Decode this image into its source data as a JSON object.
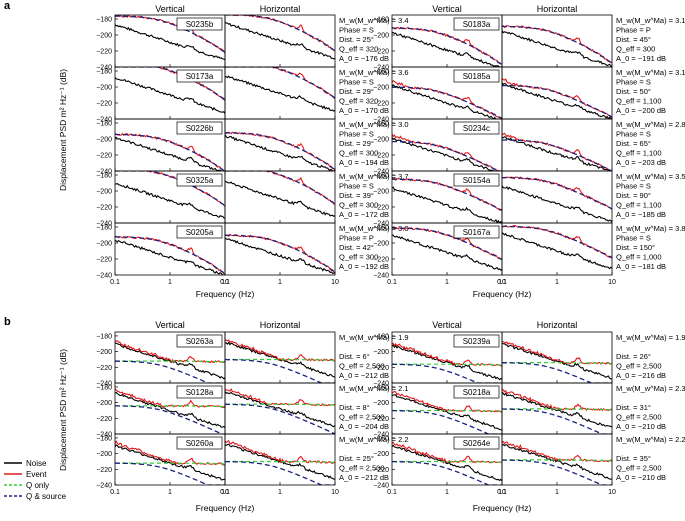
{
  "chart_data": {
    "type": "line",
    "panels": [
      {
        "label": "a",
        "x_label": "Frequency (Hz)",
        "y_label": "Displacement PSD m² Hz⁻¹ (dB)",
        "col_titles": [
          "Vertical",
          "Horizontal",
          "Vertical",
          "Horizontal"
        ],
        "x_ticks": [
          0.1,
          1,
          10
        ],
        "y_ticks": [
          -180,
          -200,
          -220,
          -240
        ],
        "ylim": [
          -240,
          -175
        ],
        "xlim": [
          0.1,
          10
        ],
        "events": [
          {
            "id": "S0235b",
            "info": [
              "M_w(M_w^Ma) = 3.4",
              "Phase = S",
              "Dist. = 25°",
              "Q_eff = 320",
              "A_0 = −176 dB"
            ],
            "col": 0,
            "row": 0,
            "A0": -176,
            "Q": 320,
            "noise0": -187,
            "noiseSlope": 20,
            "eventGap": 5
          },
          {
            "id": "S0173a",
            "info": [
              "M_w(M_w^Ma) = 3.6",
              "Phase = S",
              "Dist. = 29°",
              "Q_eff = 320",
              "A_0 = −170 dB"
            ],
            "col": 0,
            "row": 1,
            "A0": -170,
            "Q": 320,
            "noise0": -188,
            "noiseSlope": 20,
            "eventGap": 6
          },
          {
            "id": "S0226b",
            "info": [
              "M_w(M_w^Ma) = 3.0",
              "Phase = S",
              "Dist. = 29°",
              "Q_eff = 300",
              "A_0 = −194 dB"
            ],
            "col": 0,
            "row": 2,
            "A0": -194,
            "Q": 300,
            "noise0": -198,
            "noiseSlope": 20,
            "eventGap": 4
          },
          {
            "id": "S0325a",
            "info": [
              "M_w(M_w^Ma) = 3.7",
              "Phase = S",
              "Dist. = 39°",
              "Q_eff = 300",
              "A_0 = −172 dB"
            ],
            "col": 0,
            "row": 3,
            "A0": -172,
            "Q": 300,
            "noise0": -190,
            "noiseSlope": 20,
            "eventGap": 6
          },
          {
            "id": "S0205a",
            "info": [
              "M_w(M_w^Ma) = 3.0",
              "Phase = P",
              "Dist. = 42°",
              "Q_eff = 300",
              "A_0 = −192 dB"
            ],
            "col": 0,
            "row": 4,
            "A0": -192,
            "Q": 300,
            "noise0": -196,
            "noiseSlope": 20,
            "eventGap": 4
          },
          {
            "id": "S0183a",
            "info": [
              "M_w(M_w^Ma) = 3.1",
              "Phase = P",
              "Dist. = 45°",
              "Q_eff = 300",
              "A_0 = −191 dB"
            ],
            "col": 2,
            "row": 0,
            "A0": -191,
            "Q": 300,
            "noise0": -197,
            "noiseSlope": 20,
            "eventGap": 4
          },
          {
            "id": "S0185a",
            "info": [
              "M_w(M_w^Ma) = 3.1",
              "Phase = S",
              "Dist. = 50°",
              "Q_eff = 1,100",
              "A_0 = −200 dB"
            ],
            "col": 2,
            "row": 1,
            "A0": -200,
            "Q": 1100,
            "noise0": -198,
            "noiseSlope": 20,
            "eventGap": 5
          },
          {
            "id": "S0234c",
            "info": [
              "M_w(M_w^Ma) = 2.8",
              "Phase = S",
              "Dist. = 65°",
              "Q_eff = 1,100",
              "A_0 = −203 dB"
            ],
            "col": 2,
            "row": 2,
            "A0": -203,
            "Q": 1100,
            "noise0": -199,
            "noiseSlope": 20,
            "eventGap": 4
          },
          {
            "id": "S0154a",
            "info": [
              "M_w(M_w^Ma) = 3.5",
              "Phase = S",
              "Dist. = 90°",
              "Q_eff = 1,100",
              "A_0 = −185 dB"
            ],
            "col": 2,
            "row": 3,
            "A0": -185,
            "Q": 1100,
            "noise0": -196,
            "noiseSlope": 20,
            "eventGap": 5
          },
          {
            "id": "S0167a",
            "info": [
              "M_w(M_w^Ma) = 3.8",
              "Phase = S",
              "Dist. = 150°",
              "Q_eff = 1,000",
              "A_0 = −181 dB"
            ],
            "col": 2,
            "row": 4,
            "A0": -181,
            "Q": 1000,
            "noise0": -190,
            "noiseSlope": 20,
            "eventGap": 5
          }
        ]
      },
      {
        "label": "b",
        "x_label": "Frequency (Hz)",
        "y_label": "Displacement PSD m² Hz⁻¹ (dB)",
        "col_titles": [
          "Vertical",
          "Horizontal",
          "Vertical",
          "Horizontal"
        ],
        "x_ticks": [
          0.1,
          1,
          10
        ],
        "y_ticks": [
          -180,
          -200,
          -220,
          -240
        ],
        "ylim": [
          -240,
          -175
        ],
        "xlim": [
          0.1,
          10
        ],
        "events": [
          {
            "id": "S0263a",
            "info": [
              "M_w(M_w^Ma) = 1.9",
              "",
              "Dist. = 6°",
              "Q_eff = 2,500",
              "A_0 = −212 dB"
            ],
            "col": 0,
            "row": 0,
            "A0": -212,
            "Q": 2500,
            "noise0": -190,
            "noiseSlope": 20,
            "eventGap": 3
          },
          {
            "id": "S0128a",
            "info": [
              "M_w(M_w^Ma) = 2.1",
              "",
              "Dist. = 8°",
              "Q_eff = 2,500",
              "A_0 = −204 dB"
            ],
            "col": 0,
            "row": 1,
            "A0": -204,
            "Q": 2500,
            "noise0": -188,
            "noiseSlope": 20,
            "eventGap": 4
          },
          {
            "id": "S0260a",
            "info": [
              "M_w(M_w^Ma) = 2.2",
              "",
              "Dist. = 25°",
              "Q_eff = 2,500",
              "A_0 = −212 dB"
            ],
            "col": 0,
            "row": 2,
            "A0": -212,
            "Q": 2500,
            "noise0": -190,
            "noiseSlope": 20,
            "eventGap": 4
          },
          {
            "id": "S0239a",
            "info": [
              "M_w(M_w^Ma) = 1.9",
              "",
              "Dist. = 26°",
              "Q_eff = 2,500",
              "A_0 = −216 dB"
            ],
            "col": 2,
            "row": 0,
            "A0": -216,
            "Q": 2500,
            "noise0": -192,
            "noiseSlope": 20,
            "eventGap": 3
          },
          {
            "id": "S0218a",
            "info": [
              "M_w(M_w^Ma) = 2.3",
              "",
              "Dist. = 31°",
              "Q_eff = 2,500",
              "A_0 = −210 dB"
            ],
            "col": 2,
            "row": 1,
            "A0": -210,
            "Q": 2500,
            "noise0": -190,
            "noiseSlope": 20,
            "eventGap": 4
          },
          {
            "id": "S0264e",
            "info": [
              "M_w(M_w^Ma) = 2.2",
              "",
              "Dist. = 35°",
              "Q_eff = 2,500",
              "A_0 = −210 dB"
            ],
            "col": 2,
            "row": 2,
            "A0": -210,
            "Q": 2500,
            "noise0": -190,
            "noiseSlope": 20,
            "eventGap": 4
          }
        ]
      }
    ],
    "legend": [
      {
        "name": "Noise",
        "color": "#000000",
        "style": "solid"
      },
      {
        "name": "Event",
        "color": "#e31a1c",
        "style": "solid"
      },
      {
        "name": "Q only",
        "color": "#33cc33",
        "style": "dashed"
      },
      {
        "name": "Q & source",
        "color": "#1a237e",
        "style": "dashed"
      }
    ]
  }
}
